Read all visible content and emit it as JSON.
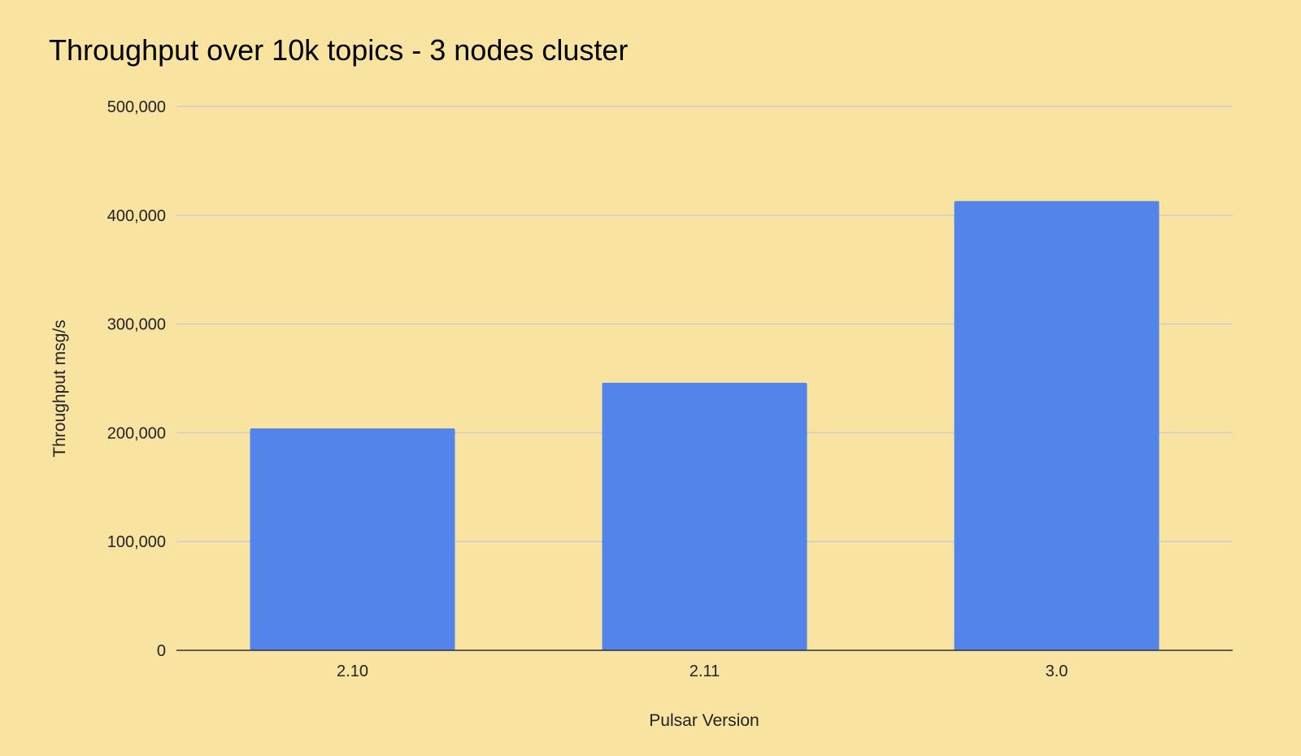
{
  "chart_data": {
    "type": "bar",
    "title": "Throughput over 10k topics - 3 nodes cluster",
    "xlabel": "Pulsar Version",
    "ylabel": "Throughput msg/s",
    "categories": [
      "2.10",
      "2.11",
      "3.0"
    ],
    "values": [
      204000,
      246000,
      413000
    ],
    "ylim": [
      0,
      500000
    ],
    "yticks": [
      "0",
      "100,000",
      "200,000",
      "300,000",
      "400,000",
      "500,000"
    ],
    "grid": true,
    "legend": "none",
    "colors": {
      "bar": "#5284ea",
      "background": "#f9e3a1",
      "grid": "#c9cdd6",
      "axis": "#333333"
    }
  }
}
